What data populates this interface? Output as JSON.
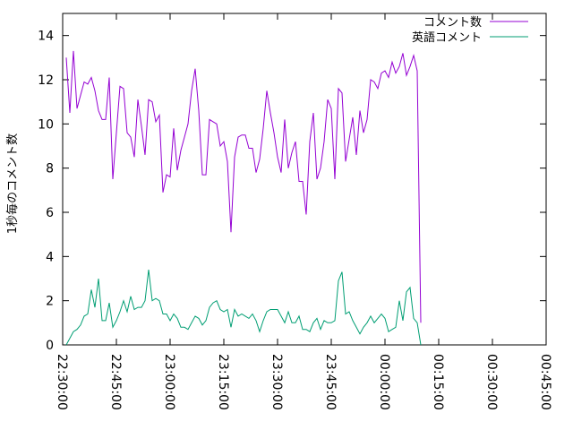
{
  "chart_data": {
    "type": "line",
    "ylabel": "1秒毎のコメント数",
    "xlabel": "",
    "ylim": [
      0,
      15
    ],
    "xlim": [
      "22:30:00",
      "00:45:00"
    ],
    "y_ticks": [
      0,
      2,
      4,
      6,
      8,
      10,
      12,
      14
    ],
    "x_ticks": [
      "22:30:00",
      "22:45:00",
      "23:00:00",
      "23:15:00",
      "23:30:00",
      "23:45:00",
      "00:00:00",
      "00:15:00",
      "00:30:00",
      "00:45:00"
    ],
    "legend_position": "top-right",
    "grid": false,
    "series": [
      {
        "name": "コメント数",
        "color": "#9400d3",
        "points": [
          [
            "22:31:00",
            13.0
          ],
          [
            "22:32:00",
            10.5
          ],
          [
            "22:33:00",
            13.3
          ],
          [
            "22:34:00",
            10.7
          ],
          [
            "22:35:00",
            11.3
          ],
          [
            "22:36:00",
            11.9
          ],
          [
            "22:37:00",
            11.8
          ],
          [
            "22:38:00",
            12.1
          ],
          [
            "22:39:00",
            11.5
          ],
          [
            "22:40:00",
            10.6
          ],
          [
            "22:41:00",
            10.2
          ],
          [
            "22:42:00",
            10.2
          ],
          [
            "22:43:00",
            12.1
          ],
          [
            "22:44:00",
            7.5
          ],
          [
            "22:45:00",
            9.6
          ],
          [
            "22:46:00",
            11.7
          ],
          [
            "22:47:00",
            11.6
          ],
          [
            "22:48:00",
            9.6
          ],
          [
            "22:49:00",
            9.4
          ],
          [
            "22:50:00",
            8.5
          ],
          [
            "22:51:00",
            11.1
          ],
          [
            "22:52:00",
            9.9
          ],
          [
            "22:53:00",
            8.6
          ],
          [
            "22:54:00",
            11.1
          ],
          [
            "22:55:00",
            11.0
          ],
          [
            "22:56:00",
            10.1
          ],
          [
            "22:57:00",
            10.4
          ],
          [
            "22:58:00",
            6.9
          ],
          [
            "22:59:00",
            7.7
          ],
          [
            "23:00:00",
            7.6
          ],
          [
            "23:01:00",
            9.8
          ],
          [
            "23:02:00",
            7.9
          ],
          [
            "23:03:00",
            8.8
          ],
          [
            "23:04:00",
            9.4
          ],
          [
            "23:05:00",
            10.0
          ],
          [
            "23:06:00",
            11.5
          ],
          [
            "23:07:00",
            12.5
          ],
          [
            "23:08:00",
            10.6
          ],
          [
            "23:09:00",
            7.7
          ],
          [
            "23:10:00",
            7.7
          ],
          [
            "23:11:00",
            10.2
          ],
          [
            "23:12:00",
            10.1
          ],
          [
            "23:13:00",
            10.0
          ],
          [
            "23:14:00",
            9.0
          ],
          [
            "23:15:00",
            9.2
          ],
          [
            "23:16:00",
            8.3
          ],
          [
            "23:17:00",
            5.1
          ],
          [
            "23:18:00",
            8.5
          ],
          [
            "23:19:00",
            9.4
          ],
          [
            "23:20:00",
            9.5
          ],
          [
            "23:21:00",
            9.5
          ],
          [
            "23:22:00",
            8.9
          ],
          [
            "23:23:00",
            8.9
          ],
          [
            "23:24:00",
            7.8
          ],
          [
            "23:25:00",
            8.4
          ],
          [
            "23:26:00",
            9.8
          ],
          [
            "23:27:00",
            11.5
          ],
          [
            "23:28:00",
            10.5
          ],
          [
            "23:29:00",
            9.6
          ],
          [
            "23:30:00",
            8.5
          ],
          [
            "23:31:00",
            7.8
          ],
          [
            "23:32:00",
            10.2
          ],
          [
            "23:33:00",
            8.0
          ],
          [
            "23:34:00",
            8.7
          ],
          [
            "23:35:00",
            9.2
          ],
          [
            "23:36:00",
            7.4
          ],
          [
            "23:37:00",
            7.4
          ],
          [
            "23:38:00",
            5.9
          ],
          [
            "23:39:00",
            9.2
          ],
          [
            "23:40:00",
            10.5
          ],
          [
            "23:41:00",
            7.5
          ],
          [
            "23:42:00",
            8.0
          ],
          [
            "23:43:00",
            9.2
          ],
          [
            "23:44:00",
            11.1
          ],
          [
            "23:45:00",
            10.7
          ],
          [
            "23:46:00",
            7.5
          ],
          [
            "23:47:00",
            11.6
          ],
          [
            "23:48:00",
            11.4
          ],
          [
            "23:49:00",
            8.3
          ],
          [
            "23:50:00",
            9.3
          ],
          [
            "23:51:00",
            10.3
          ],
          [
            "23:52:00",
            8.6
          ],
          [
            "23:53:00",
            10.6
          ],
          [
            "23:54:00",
            9.6
          ],
          [
            "23:55:00",
            10.2
          ],
          [
            "23:56:00",
            12.0
          ],
          [
            "23:57:00",
            11.9
          ],
          [
            "23:58:00",
            11.6
          ],
          [
            "23:59:00",
            12.3
          ],
          [
            "00:00:00",
            12.4
          ],
          [
            "00:01:00",
            12.1
          ],
          [
            "00:02:00",
            12.8
          ],
          [
            "00:03:00",
            12.3
          ],
          [
            "00:04:00",
            12.6
          ],
          [
            "00:05:00",
            13.2
          ],
          [
            "00:06:00",
            12.2
          ],
          [
            "00:07:00",
            12.6
          ],
          [
            "00:08:00",
            13.1
          ],
          [
            "00:09:00",
            12.4
          ],
          [
            "00:10:00",
            1.0
          ]
        ]
      },
      {
        "name": "英語コメント",
        "color": "#009e73",
        "points": [
          [
            "22:31:00",
            0.0
          ],
          [
            "22:32:00",
            0.3
          ],
          [
            "22:33:00",
            0.6
          ],
          [
            "22:34:00",
            0.7
          ],
          [
            "22:35:00",
            0.9
          ],
          [
            "22:36:00",
            1.3
          ],
          [
            "22:37:00",
            1.4
          ],
          [
            "22:38:00",
            2.5
          ],
          [
            "22:39:00",
            1.7
          ],
          [
            "22:40:00",
            3.0
          ],
          [
            "22:41:00",
            1.1
          ],
          [
            "22:42:00",
            1.1
          ],
          [
            "22:43:00",
            1.9
          ],
          [
            "22:44:00",
            0.8
          ],
          [
            "22:45:00",
            1.1
          ],
          [
            "22:46:00",
            1.5
          ],
          [
            "22:47:00",
            2.0
          ],
          [
            "22:48:00",
            1.5
          ],
          [
            "22:49:00",
            2.2
          ],
          [
            "22:50:00",
            1.6
          ],
          [
            "22:51:00",
            1.7
          ],
          [
            "22:52:00",
            1.7
          ],
          [
            "22:53:00",
            2.0
          ],
          [
            "22:54:00",
            3.4
          ],
          [
            "22:55:00",
            2.0
          ],
          [
            "22:56:00",
            2.1
          ],
          [
            "22:57:00",
            2.0
          ],
          [
            "22:58:00",
            1.4
          ],
          [
            "22:59:00",
            1.4
          ],
          [
            "23:00:00",
            1.1
          ],
          [
            "23:01:00",
            1.4
          ],
          [
            "23:02:00",
            1.2
          ],
          [
            "23:03:00",
            0.8
          ],
          [
            "23:04:00",
            0.8
          ],
          [
            "23:05:00",
            0.7
          ],
          [
            "23:06:00",
            1.0
          ],
          [
            "23:07:00",
            1.3
          ],
          [
            "23:08:00",
            1.2
          ],
          [
            "23:09:00",
            0.9
          ],
          [
            "23:10:00",
            1.1
          ],
          [
            "23:11:00",
            1.7
          ],
          [
            "23:12:00",
            1.9
          ],
          [
            "23:13:00",
            2.0
          ],
          [
            "23:14:00",
            1.6
          ],
          [
            "23:15:00",
            1.5
          ],
          [
            "23:16:00",
            1.6
          ],
          [
            "23:17:00",
            0.8
          ],
          [
            "23:18:00",
            1.6
          ],
          [
            "23:19:00",
            1.3
          ],
          [
            "23:20:00",
            1.4
          ],
          [
            "23:21:00",
            1.3
          ],
          [
            "23:22:00",
            1.2
          ],
          [
            "23:23:00",
            1.4
          ],
          [
            "23:24:00",
            1.1
          ],
          [
            "23:25:00",
            0.6
          ],
          [
            "23:26:00",
            1.1
          ],
          [
            "23:27:00",
            1.5
          ],
          [
            "23:28:00",
            1.6
          ],
          [
            "23:29:00",
            1.6
          ],
          [
            "23:30:00",
            1.6
          ],
          [
            "23:31:00",
            1.3
          ],
          [
            "23:32:00",
            1.0
          ],
          [
            "23:33:00",
            1.5
          ],
          [
            "23:34:00",
            1.0
          ],
          [
            "23:35:00",
            1.0
          ],
          [
            "23:36:00",
            1.3
          ],
          [
            "23:37:00",
            0.7
          ],
          [
            "23:38:00",
            0.7
          ],
          [
            "23:39:00",
            0.6
          ],
          [
            "23:40:00",
            1.0
          ],
          [
            "23:41:00",
            1.2
          ],
          [
            "23:42:00",
            0.7
          ],
          [
            "23:43:00",
            1.1
          ],
          [
            "23:44:00",
            1.0
          ],
          [
            "23:45:00",
            1.0
          ],
          [
            "23:46:00",
            1.1
          ],
          [
            "23:47:00",
            2.9
          ],
          [
            "23:48:00",
            3.3
          ],
          [
            "23:49:00",
            1.4
          ],
          [
            "23:50:00",
            1.5
          ],
          [
            "23:51:00",
            1.1
          ],
          [
            "23:52:00",
            0.8
          ],
          [
            "23:53:00",
            0.5
          ],
          [
            "23:54:00",
            0.8
          ],
          [
            "23:55:00",
            1.0
          ],
          [
            "23:56:00",
            1.3
          ],
          [
            "23:57:00",
            1.0
          ],
          [
            "23:58:00",
            1.2
          ],
          [
            "23:59:00",
            1.4
          ],
          [
            "00:00:00",
            1.2
          ],
          [
            "00:01:00",
            0.6
          ],
          [
            "00:02:00",
            0.7
          ],
          [
            "00:03:00",
            0.8
          ],
          [
            "00:04:00",
            2.0
          ],
          [
            "00:05:00",
            1.1
          ],
          [
            "00:06:00",
            2.4
          ],
          [
            "00:07:00",
            2.6
          ],
          [
            "00:08:00",
            1.2
          ],
          [
            "00:09:00",
            1.0
          ],
          [
            "00:10:00",
            0.0
          ]
        ]
      }
    ]
  }
}
